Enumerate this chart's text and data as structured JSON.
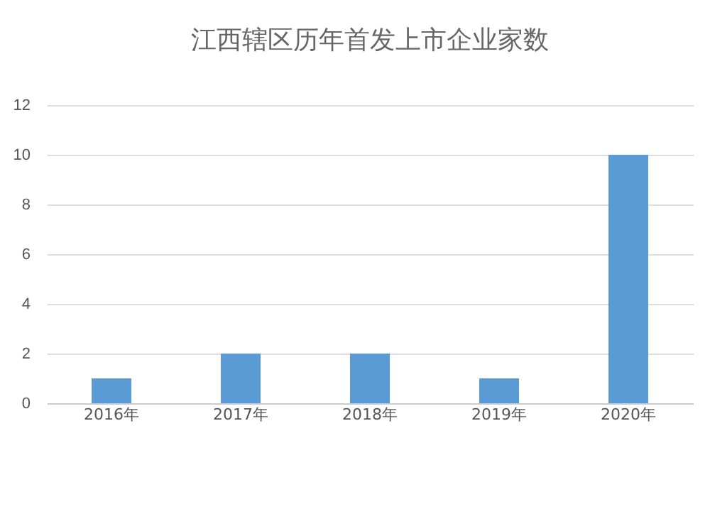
{
  "chart_data": {
    "type": "bar",
    "title": "江西辖区历年首发上市企业家数",
    "categories": [
      "2016年",
      "2017年",
      "2018年",
      "2019年",
      "2020年"
    ],
    "values": [
      1,
      2,
      2,
      1,
      10
    ],
    "color": "#5b9bd5",
    "ylim": [
      0,
      12
    ],
    "yticks": [
      0,
      2,
      4,
      6,
      8,
      10,
      12
    ],
    "grid": "y"
  }
}
